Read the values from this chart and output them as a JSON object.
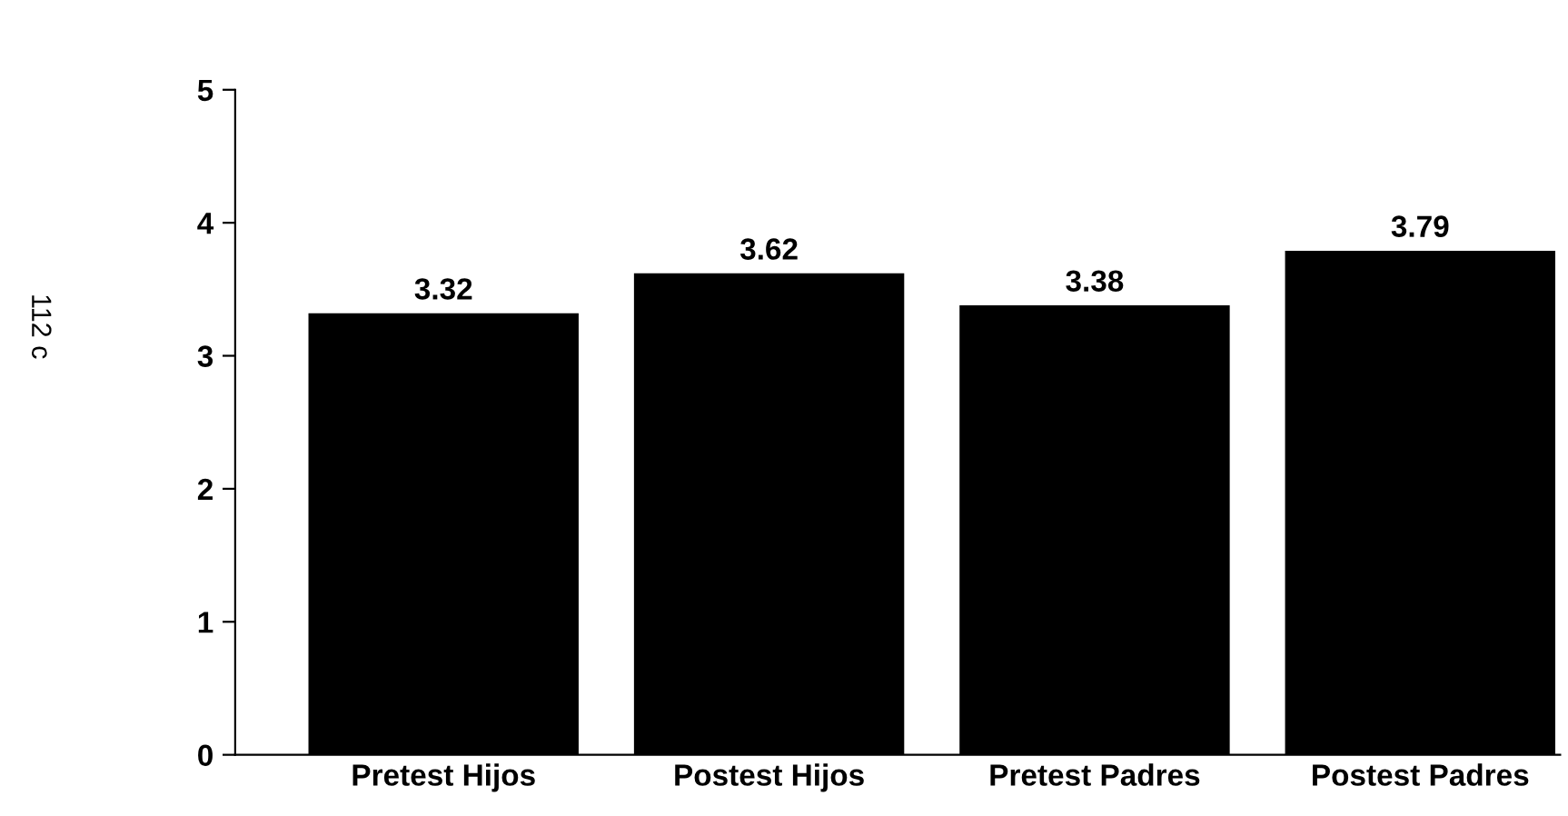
{
  "chart_data": {
    "type": "bar",
    "categories": [
      "Pretest Hijos",
      "Postest Hijos",
      "Pretest Padres",
      "Postest Padres"
    ],
    "values": [
      3.32,
      3.62,
      3.38,
      3.79
    ],
    "color": "#000000",
    "ylim": [
      0,
      5
    ],
    "yticks": [
      0,
      1,
      2,
      3,
      4,
      5
    ],
    "data_labels": true,
    "grid": false,
    "legend": false,
    "annotations": [
      "112 c"
    ]
  }
}
